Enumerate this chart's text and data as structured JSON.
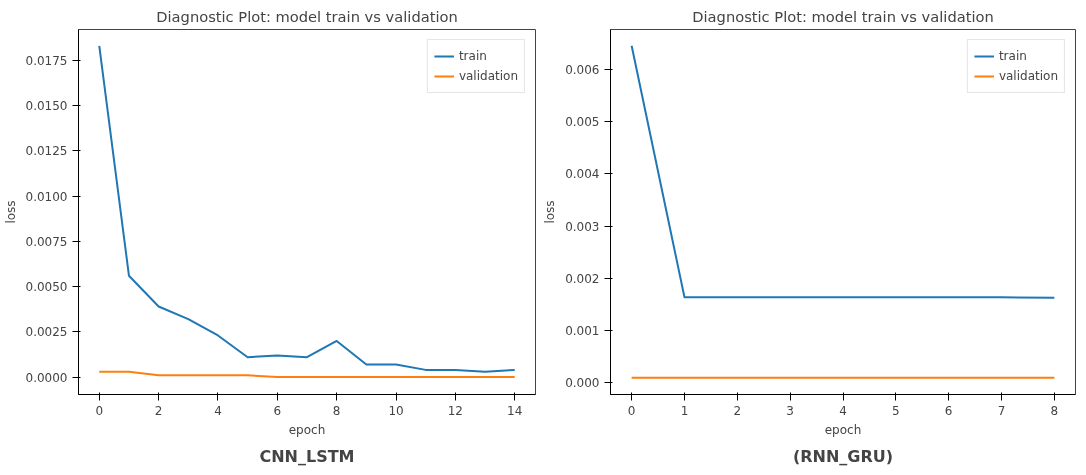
{
  "chart_data": [
    {
      "type": "line",
      "title": "Diagnostic Plot: model train vs validation",
      "xlabel": "epoch",
      "ylabel": "loss",
      "annotations": [
        "CNN_LSTM"
      ],
      "x": [
        0,
        1,
        2,
        3,
        4,
        5,
        6,
        7,
        8,
        9,
        10,
        11,
        12,
        13,
        14
      ],
      "series": [
        {
          "name": "train",
          "color": "#1f77b4",
          "values": [
            0.0183,
            0.0056,
            0.0039,
            0.0032,
            0.0023,
            0.0011,
            0.0012,
            0.0011,
            0.002,
            0.0007,
            0.0007,
            0.0004,
            0.0004,
            0.0003,
            0.0004
          ]
        },
        {
          "name": "validation",
          "color": "#ff7f0e",
          "values": [
            0.0003,
            0.0003,
            0.0001,
            0.0001,
            0.0001,
            0.0001,
            0.0,
            0.0,
            0.0,
            0.0,
            0.0,
            0.0,
            0.0,
            0.0,
            0.0
          ]
        }
      ],
      "xlim": [
        -0.7,
        14.7
      ],
      "ylim": [
        -0.00096,
        0.0192
      ],
      "xticks": [
        0,
        2,
        4,
        6,
        8,
        10,
        12,
        14
      ],
      "yticks": [
        {
          "value": 0,
          "label": "0.0000"
        },
        {
          "value": 0.0025,
          "label": "0.0025"
        },
        {
          "value": 0.005,
          "label": "0.0050"
        },
        {
          "value": 0.0075,
          "label": "0.0075"
        },
        {
          "value": 0.01,
          "label": "0.0100"
        },
        {
          "value": 0.0125,
          "label": "0.0125"
        },
        {
          "value": 0.015,
          "label": "0.0150"
        },
        {
          "value": 0.0175,
          "label": "0.0175"
        }
      ],
      "grid": false,
      "legend": "top right"
    },
    {
      "type": "line",
      "title": "Diagnostic Plot: model train vs validation",
      "xlabel": "epoch",
      "ylabel": "loss",
      "annotations": [
        "(RNN_GRU)"
      ],
      "x": [
        0,
        1,
        2,
        3,
        4,
        5,
        6,
        7,
        8
      ],
      "series": [
        {
          "name": "train",
          "color": "#1f77b4",
          "values": [
            0.00645,
            0.00164,
            0.00164,
            0.00164,
            0.00164,
            0.00164,
            0.00164,
            0.00164,
            0.00163
          ]
        },
        {
          "name": "validation",
          "color": "#ff7f0e",
          "values": [
            0.0001,
            0.0001,
            0.0001,
            0.0001,
            0.0001,
            0.0001,
            0.0001,
            0.0001,
            0.0001
          ]
        }
      ],
      "xlim": [
        -0.4,
        8.4
      ],
      "ylim": [
        -0.00022,
        0.00676
      ],
      "xticks": [
        0,
        1,
        2,
        3,
        4,
        5,
        6,
        7,
        8
      ],
      "yticks": [
        {
          "value": 0,
          "label": "0.000"
        },
        {
          "value": 0.001,
          "label": "0.001"
        },
        {
          "value": 0.002,
          "label": "0.002"
        },
        {
          "value": 0.003,
          "label": "0.003"
        },
        {
          "value": 0.004,
          "label": "0.004"
        },
        {
          "value": 0.005,
          "label": "0.005"
        },
        {
          "value": 0.006,
          "label": "0.006"
        }
      ],
      "grid": false,
      "legend": "top right"
    }
  ]
}
